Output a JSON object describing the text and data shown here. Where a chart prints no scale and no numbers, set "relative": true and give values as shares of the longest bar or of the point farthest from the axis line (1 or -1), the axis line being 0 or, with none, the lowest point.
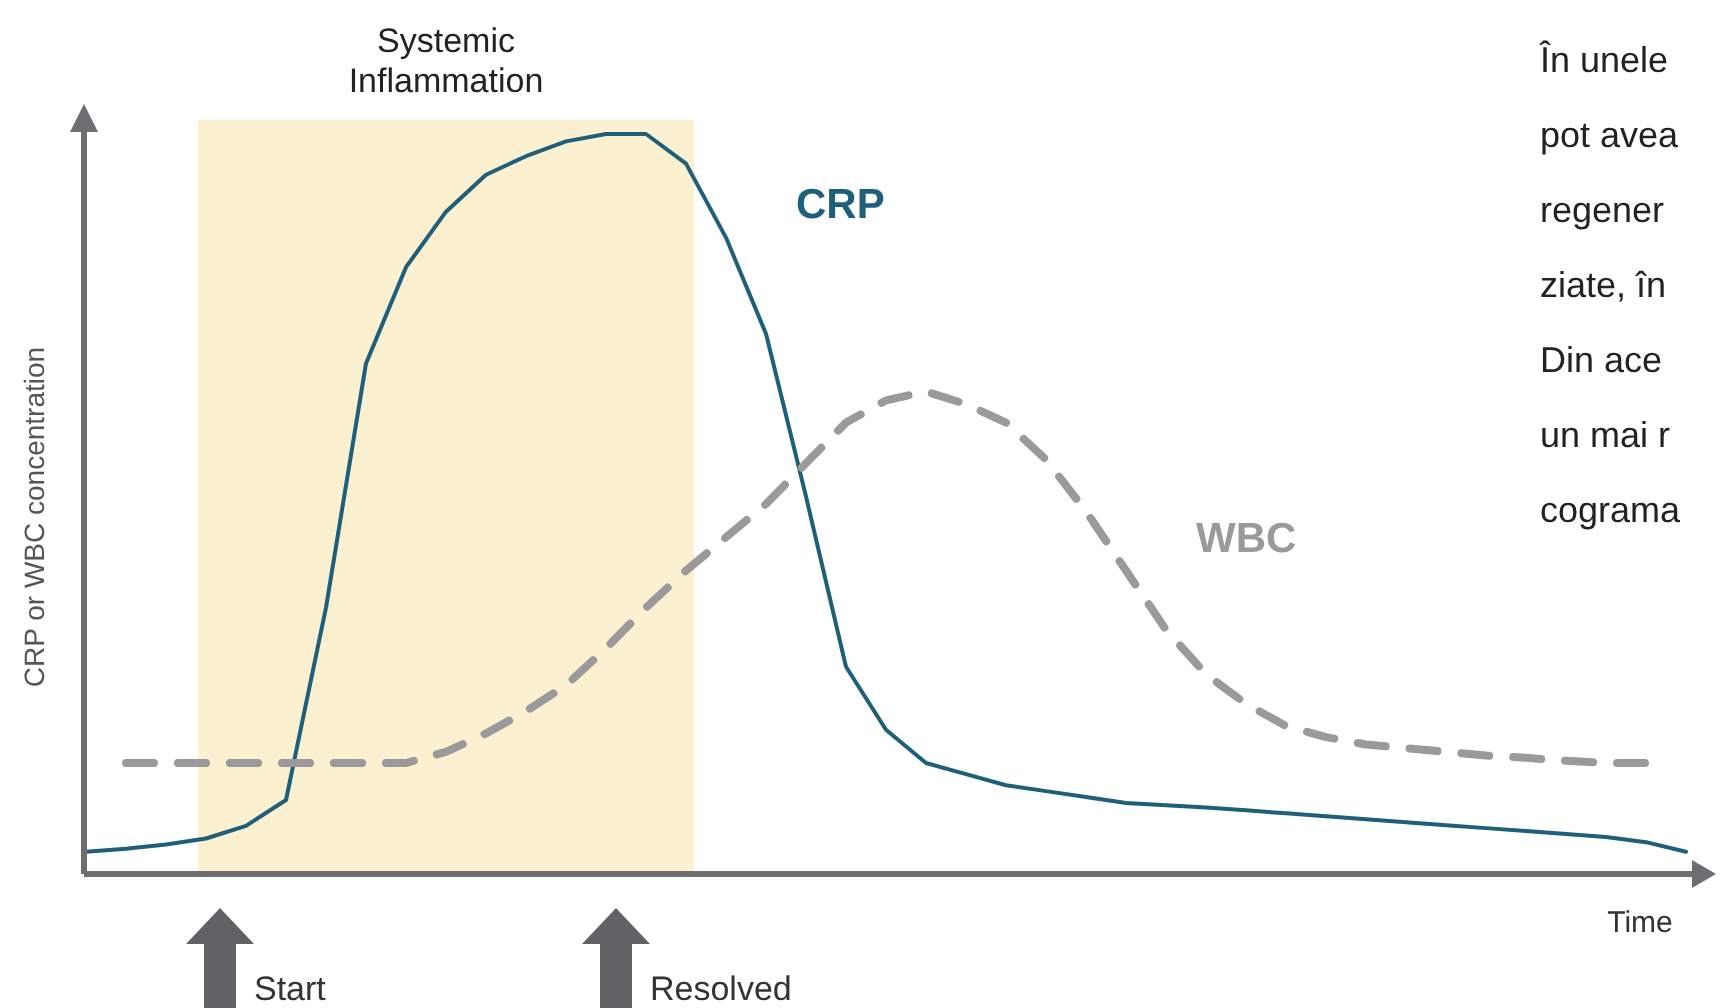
{
  "chart_data": {
    "type": "line",
    "relative": true,
    "xlabel": "Time",
    "ylabel": "CRP or WBC concentration",
    "categories": [
      null,
      null,
      null,
      null,
      null,
      null,
      null,
      null,
      null,
      null,
      null,
      null,
      null,
      null,
      null,
      null,
      null,
      null,
      null,
      null,
      null,
      null,
      null,
      null,
      null,
      null,
      null,
      null,
      null,
      null,
      null,
      null,
      null,
      null,
      null,
      null,
      null,
      null,
      null,
      null,
      null
    ],
    "series": [
      {
        "name": "CRP",
        "color": "#1f5f7a",
        "line_style": "solid",
        "values": [
          0.03,
          0.034,
          0.04,
          0.048,
          0.065,
          0.1,
          0.36,
          0.69,
          0.82,
          0.895,
          0.945,
          0.97,
          0.99,
          1.0,
          1.0,
          0.96,
          0.86,
          0.73,
          0.51,
          0.28,
          0.195,
          0.15,
          0.135,
          0.12,
          0.112,
          0.104,
          0.096,
          0.093,
          0.09,
          0.086,
          0.082,
          0.078,
          0.074,
          0.07,
          0.066,
          0.062,
          0.058,
          0.054,
          0.05,
          0.043,
          0.03
        ]
      },
      {
        "name": "WBC",
        "color": "#9a9a9c",
        "line_style": "dashed",
        "values": [
          null,
          0.15,
          0.15,
          0.15,
          0.15,
          0.15,
          0.15,
          0.15,
          0.15,
          0.165,
          0.19,
          0.22,
          0.255,
          0.305,
          0.36,
          0.41,
          0.455,
          0.5,
          0.555,
          0.61,
          0.64,
          0.652,
          0.635,
          0.61,
          0.56,
          0.49,
          0.41,
          0.33,
          0.27,
          0.23,
          0.2,
          0.185,
          0.175,
          0.17,
          0.165,
          0.16,
          0.157,
          0.153,
          0.15,
          0.15,
          null
        ]
      }
    ],
    "annotations": [
      "Systemic\nInflammation",
      "Start",
      "Resolved",
      "În unele\npot avea\nregener\nziate, în\nDin ace\nun mai r\ncograma"
    ]
  }
}
